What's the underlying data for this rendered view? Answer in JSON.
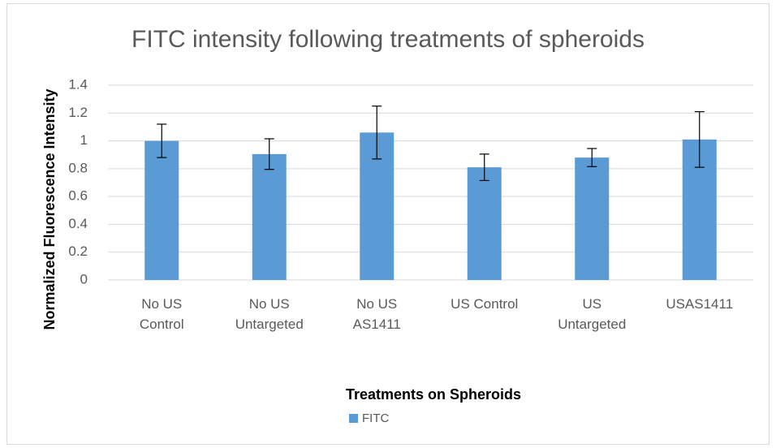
{
  "chart_data": {
    "type": "bar",
    "title": "FITC intensity following treatments of spheroids",
    "x_label": "Treatments on Spheroids",
    "y_label": "Normalized Fluorescence Intensity",
    "categories": [
      "No US Control",
      "No US Untargeted",
      "No US AS1411",
      "US Control",
      "US Untargeted",
      "USAS1411"
    ],
    "series": [
      {
        "name": "FITC",
        "color": "#5b9bd5",
        "values": [
          1.0,
          0.905,
          1.06,
          0.81,
          0.88,
          1.01
        ],
        "errors": [
          0.12,
          0.11,
          0.19,
          0.095,
          0.065,
          0.2
        ]
      }
    ],
    "ylim": [
      0,
      1.4
    ],
    "yticks": [
      0,
      0.2,
      0.4,
      0.6,
      0.8,
      1,
      1.2,
      1.4
    ],
    "grid": true,
    "legend": "bottom"
  }
}
